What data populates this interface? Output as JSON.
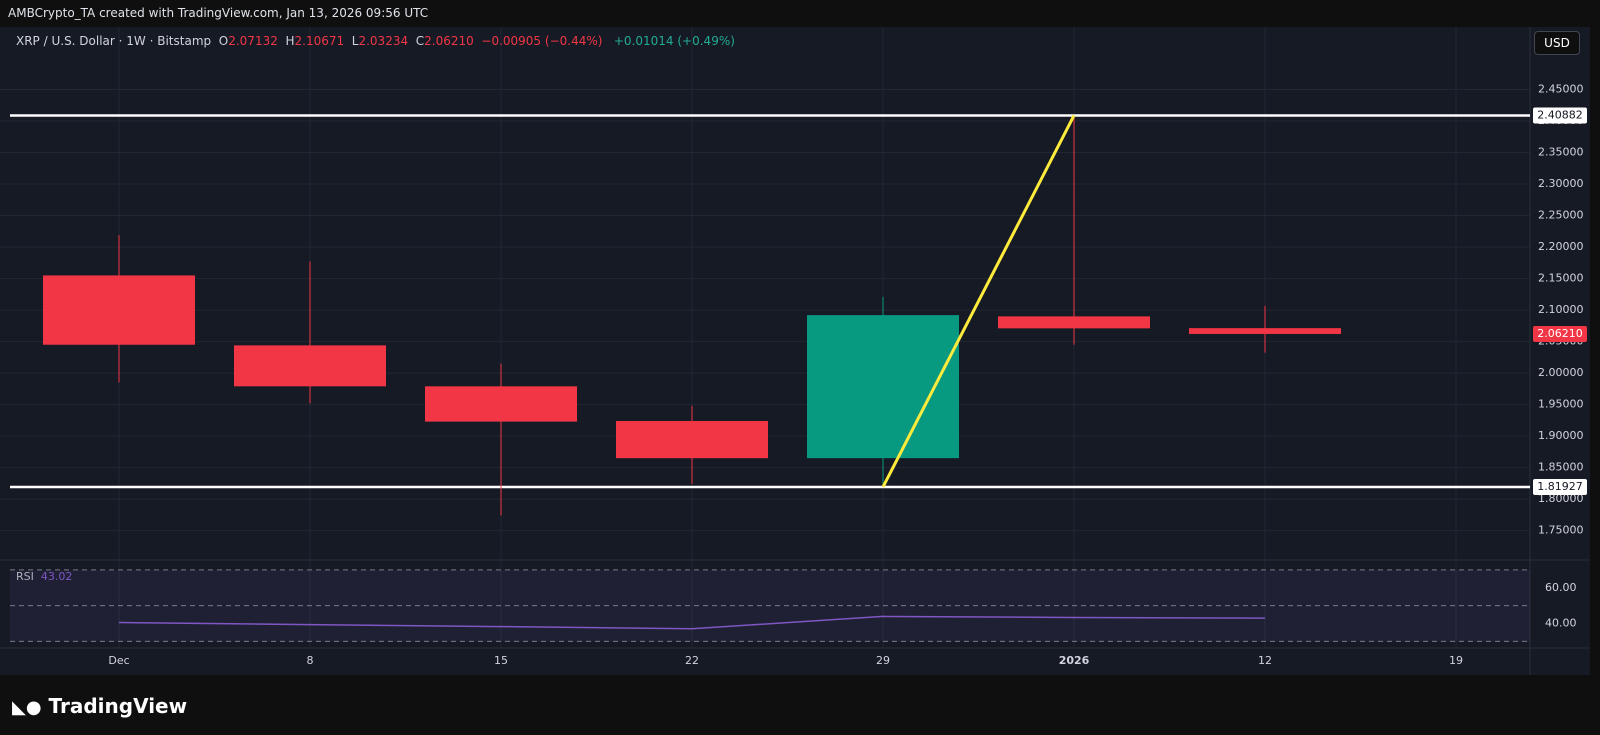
{
  "header": "AMBCrypto_TA created with TradingView.com, Jan 13, 2026 09:56 UTC",
  "chart_data": {
    "type": "candlestick",
    "symbol": "XRP / U.S. Dollar · 1W · Bitstamp",
    "legend": [
      "O",
      "2.07132",
      "H",
      "2.10671",
      "L",
      "2.03234",
      "C",
      "2.06210"
    ],
    "change": "−0.00905 (−0.44%)",
    "change2": "+0.01014 (+0.49%)",
    "currency": "USD",
    "categories": [
      "Dec",
      "8",
      "15",
      "22",
      "29",
      "2026",
      "12",
      "19"
    ],
    "open": [
      2.155,
      2.044,
      1.979,
      1.924,
      1.865,
      2.09,
      2.07132,
      null
    ],
    "high": [
      2.219,
      2.177,
      2.015,
      1.948,
      2.121,
      2.40882,
      2.10671,
      null
    ],
    "low": [
      1.985,
      1.952,
      1.774,
      1.824,
      1.81927,
      2.045,
      2.03234,
      null
    ],
    "close": [
      2.045,
      1.979,
      1.923,
      1.865,
      2.092,
      2.071,
      2.0621,
      null
    ],
    "up_color": "#089981",
    "down_color": "#f23645",
    "ylim": [
      1.705,
      2.5
    ],
    "yticks": [
      {
        "value": 2.45,
        "label": "2.45000"
      },
      {
        "value": 2.4,
        "label": "2.40000"
      },
      {
        "value": 2.35,
        "label": "2.35000"
      },
      {
        "value": 2.3,
        "label": "2.30000"
      },
      {
        "value": 2.25,
        "label": "2.25000"
      },
      {
        "value": 2.2,
        "label": "2.20000"
      },
      {
        "value": 2.15,
        "label": "2.15000"
      },
      {
        "value": 2.1,
        "label": "2.10000"
      },
      {
        "value": 2.05,
        "label": "2.05000"
      },
      {
        "value": 2.0,
        "label": "2.00000"
      },
      {
        "value": 1.95,
        "label": "1.95000"
      },
      {
        "value": 1.9,
        "label": "1.90000"
      },
      {
        "value": 1.85,
        "label": "1.85000"
      },
      {
        "value": 1.8,
        "label": "1.80000"
      },
      {
        "value": 1.75,
        "label": "1.75000"
      }
    ],
    "grid": true,
    "hlines": [
      {
        "value": 2.40882,
        "label": "2.40882"
      },
      {
        "value": 1.81927,
        "label": "1.81927"
      }
    ],
    "last_price": {
      "value": 2.0621,
      "label": "2.06210"
    },
    "trendline_color": "#ffeb3b",
    "rsi": {
      "label": "RSI",
      "values": [
        40.6,
        39.4,
        38.3,
        37.1,
        44.0,
        43.4,
        43.02,
        null
      ],
      "color": "#7e57c2",
      "ylim": [
        28,
        75
      ],
      "yticks": [
        {
          "value": 60,
          "label": "60.00"
        },
        {
          "value": 40,
          "label": "40.00"
        }
      ],
      "bands": [
        70,
        50,
        30
      ]
    }
  },
  "footer": "TradingView"
}
